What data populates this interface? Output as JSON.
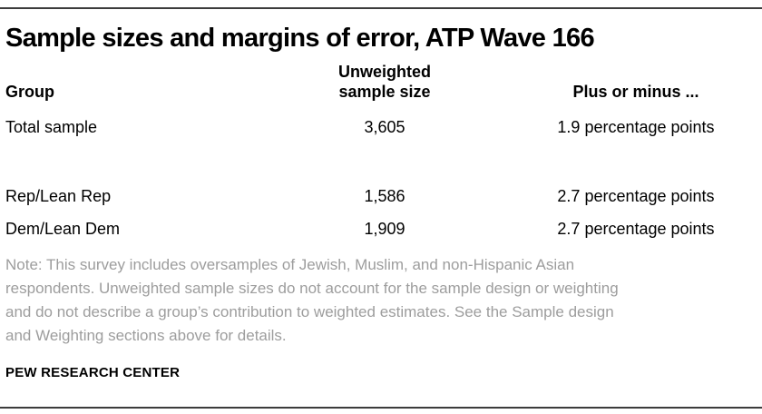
{
  "title": "Sample sizes and margins of error, ATP Wave 166",
  "table": {
    "col_headers": {
      "group": "Group",
      "sample": "Unweighted\nsample size",
      "moe": "Plus or minus ..."
    },
    "rows": [
      {
        "group": "Total sample",
        "n": "3,605",
        "moe": "1.9 percentage points"
      },
      {
        "group": "Rep/Lean Rep",
        "n": "1,586",
        "moe": "2.7 percentage points"
      },
      {
        "group": "Dem/Lean Dem",
        "n": "1,909",
        "moe": "2.7 percentage points"
      }
    ]
  },
  "note": "Note: This survey includes oversamples of Jewish, Muslim, and non-Hispanic Asian\nrespondents. Unweighted sample sizes do not account for the sample design or weighting\nand do not describe a group’s contribution to weighted estimates. See the Sample design\nand Weighting sections above for details.",
  "source": "PEW RESEARCH CENTER",
  "colors": {
    "rule": "#3c3c3c",
    "text": "#000000",
    "note_gray": "#9d9d9d",
    "background": "#ffffff"
  },
  "chart_data": {
    "type": "table",
    "title": "Sample sizes and margins of error, ATP Wave 166",
    "columns": [
      "Group",
      "Unweighted sample size",
      "Plus or minus ..."
    ],
    "rows": [
      [
        "Total sample",
        "3,605",
        "1.9 percentage points"
      ],
      [
        "Rep/Lean Rep",
        "1,586",
        "2.7 percentage points"
      ],
      [
        "Dem/Lean Dem",
        "1,909",
        "2.7 percentage points"
      ]
    ],
    "note": "Note: This survey includes oversamples of Jewish, Muslim, and non-Hispanic Asian respondents. Unweighted sample sizes do not account for the sample design or weighting and do not describe a group’s contribution to weighted estimates. See the Sample design and Weighting sections above for details.",
    "source": "PEW RESEARCH CENTER"
  }
}
